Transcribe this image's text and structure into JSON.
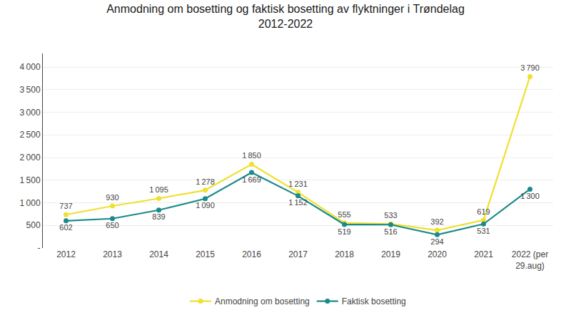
{
  "chart_data": {
    "type": "line",
    "title": "Anmodning om bosetting og faktisk bosetting av flyktninger i Trøndelag",
    "subtitle": "2012-2022",
    "categories": [
      "2012",
      "2013",
      "2014",
      "2015",
      "2016",
      "2017",
      "2018",
      "2019",
      "2020",
      "2021",
      "2022 (per\n29.aug)"
    ],
    "series": [
      {
        "name": "Anmodning om bosetting",
        "color": "#f0e030",
        "marker": "circle",
        "values": [
          737,
          930,
          1095,
          1278,
          1850,
          1231,
          555,
          533,
          392,
          619,
          3790
        ],
        "value_labels": [
          "737",
          "930",
          "1 095",
          "1 278",
          "1 850",
          "1 231",
          "555",
          "533",
          "392",
          "619",
          "3 790"
        ]
      },
      {
        "name": "Faktisk bosetting",
        "color": "#1a8a8a",
        "marker": "circle",
        "values": [
          602,
          650,
          839,
          1090,
          1669,
          1152,
          519,
          516,
          294,
          531,
          1300
        ],
        "value_labels": [
          "602",
          "650",
          "839",
          "1 090",
          "1 669",
          "1 152",
          "519",
          "516",
          "294",
          "531",
          "1 300"
        ]
      }
    ],
    "ylim": [
      0,
      4300
    ],
    "yticks": [
      {
        "value": 0,
        "label": "-"
      },
      500,
      {
        "value": 1000,
        "label": "1 000"
      },
      {
        "value": 1500,
        "label": "1 500"
      },
      {
        "value": 2000,
        "label": "2 000"
      },
      {
        "value": 2500,
        "label": "2 500"
      },
      {
        "value": 3000,
        "label": "3 000"
      },
      {
        "value": 3500,
        "label": "3 500"
      },
      {
        "value": 4000,
        "label": "4 000"
      }
    ],
    "grid": true,
    "data_labels": true,
    "legend": "bottom"
  }
}
